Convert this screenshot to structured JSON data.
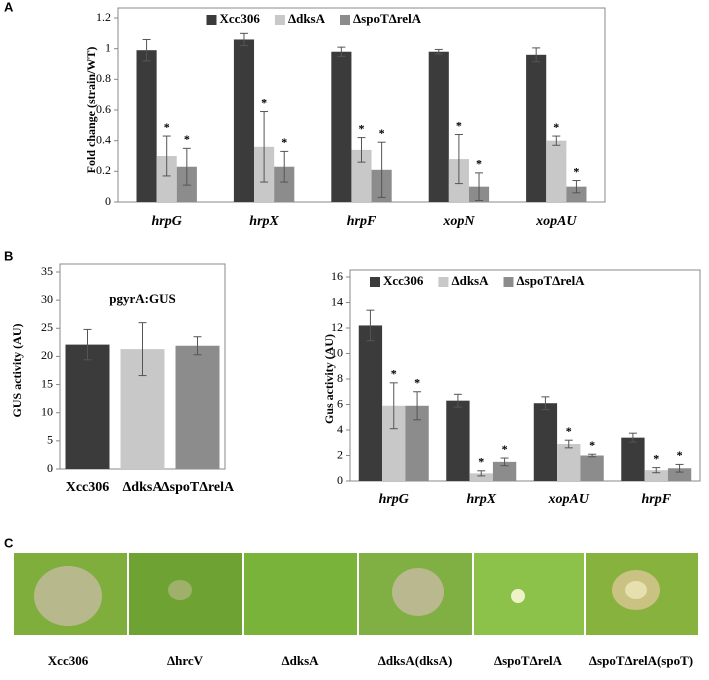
{
  "panel_labels": [
    "A",
    "B",
    "C"
  ],
  "chart_data": [
    {
      "type": "bar",
      "ylabel": "Fold change (strain/WT)",
      "categories": [
        "hrpG",
        "hrpX",
        "hrpF",
        "xopN",
        "xopAU"
      ],
      "series": [
        {
          "name": "Xcc306",
          "color": "#3b3b3b",
          "values": [
            0.99,
            1.06,
            0.98,
            0.98,
            0.96
          ],
          "errors": [
            0.07,
            0.04,
            0.03,
            0.015,
            0.045
          ]
        },
        {
          "name": "ΔdksA",
          "color": "#c8c8c8",
          "values": [
            0.3,
            0.36,
            0.34,
            0.28,
            0.4
          ],
          "errors": [
            0.13,
            0.23,
            0.08,
            0.16,
            0.03
          ],
          "significance": [
            "*",
            "*",
            "*",
            "*",
            "*"
          ]
        },
        {
          "name": "ΔspoTΔrelA",
          "color": "#8c8c8c",
          "values": [
            0.23,
            0.23,
            0.21,
            0.1,
            0.1
          ],
          "errors": [
            0.12,
            0.1,
            0.18,
            0.09,
            0.04
          ],
          "significance": [
            "*",
            "*",
            "*",
            "*",
            "*"
          ]
        }
      ],
      "ylim": [
        0,
        1.2
      ],
      "yticks": [
        0,
        0.2,
        0.4,
        0.6,
        0.8,
        1,
        1.2
      ],
      "legend": "top"
    },
    {
      "type": "bar",
      "ylabel": "GUS activity (AU)",
      "annotation": "pgyrA:GUS",
      "categories": [
        "Xcc306",
        "ΔdksA",
        "ΔspoTΔrelA"
      ],
      "series": [
        {
          "colors": [
            "#3b3b3b",
            "#c8c8c8",
            "#8c8c8c"
          ],
          "values": [
            22.1,
            21.3,
            21.9
          ],
          "errors": [
            2.7,
            4.7,
            1.6
          ]
        }
      ],
      "ylim": [
        0,
        35
      ],
      "yticks": [
        0,
        5,
        10,
        15,
        20,
        25,
        30,
        35
      ]
    },
    {
      "type": "bar",
      "ylabel": "Gus activity  (AU)",
      "categories": [
        "hrpG",
        "hrpX",
        "xopAU",
        "hrpF"
      ],
      "series": [
        {
          "name": "Xcc306",
          "color": "#3b3b3b",
          "values": [
            12.2,
            6.3,
            6.1,
            3.4
          ],
          "errors": [
            1.2,
            0.5,
            0.5,
            0.35
          ]
        },
        {
          "name": "ΔdksA",
          "color": "#c8c8c8",
          "values": [
            5.9,
            0.6,
            2.9,
            0.85
          ],
          "errors": [
            1.8,
            0.2,
            0.3,
            0.2
          ],
          "significance": [
            "*",
            "*",
            "*",
            "*"
          ]
        },
        {
          "name": "ΔspoTΔrelA",
          "color": "#8c8c8c",
          "values": [
            5.9,
            1.5,
            2.0,
            1.0
          ],
          "errors": [
            1.1,
            0.3,
            0.1,
            0.3
          ],
          "significance": [
            "*",
            "*",
            "*",
            "*"
          ]
        }
      ],
      "ylim": [
        0,
        16
      ],
      "yticks": [
        0,
        2,
        4,
        6,
        8,
        10,
        12,
        14,
        16
      ],
      "legend": "top"
    }
  ],
  "photo_labels": [
    "Xcc306",
    "ΔhrcV",
    "ΔdksA",
    "ΔdksA(dksA)",
    "ΔspoTΔrelA",
    "ΔspoTΔrelA(spoT)"
  ]
}
